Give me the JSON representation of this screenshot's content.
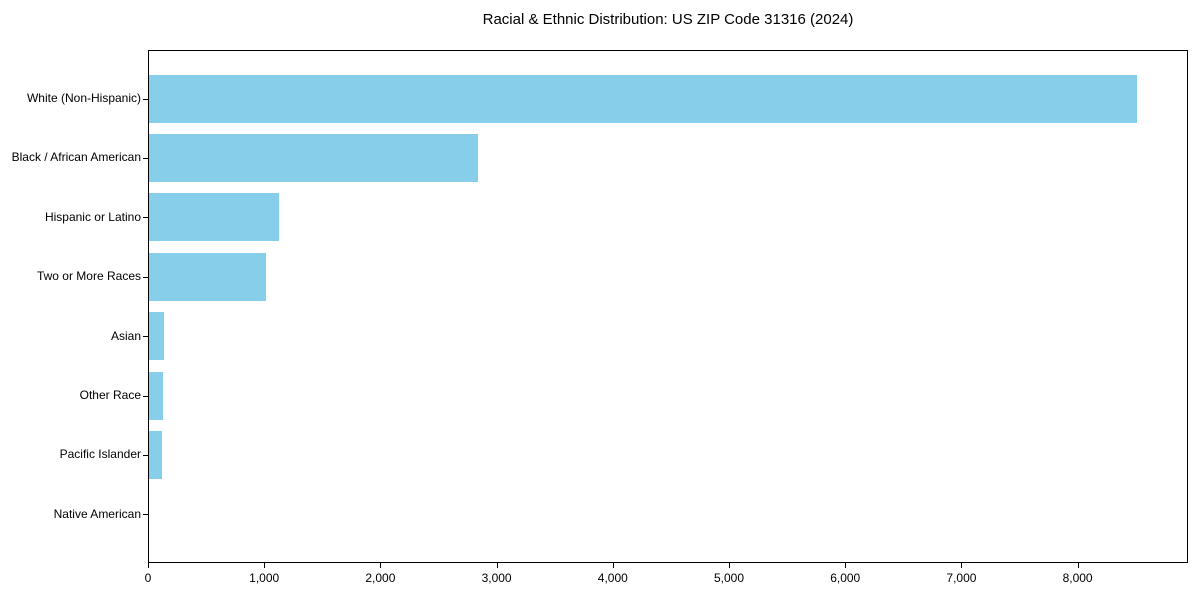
{
  "title": "Racial & Ethnic Distribution: US ZIP Code 31316 (2024)",
  "colors": {
    "bar": "#87CEEB",
    "axis": "#000000",
    "background": "#FFFFFF",
    "text": "#000000"
  },
  "chart_data": {
    "type": "bar",
    "orientation": "horizontal",
    "title": "Racial & Ethnic Distribution: US ZIP Code 31316 (2024)",
    "categories": [
      "White (Non-Hispanic)",
      "Black / African American",
      "Hispanic or Latino",
      "Two or More Races",
      "Asian",
      "Other Race",
      "Pacific Islander",
      "Native American"
    ],
    "values": [
      8500,
      2830,
      1120,
      1005,
      128,
      118,
      112,
      0
    ],
    "xlabel": "",
    "ylabel": "",
    "xlim": [
      0,
      8950
    ],
    "xticks": [
      0,
      1000,
      2000,
      3000,
      4000,
      5000,
      6000,
      7000,
      8000
    ],
    "xtick_labels": [
      "0",
      "1,000",
      "2,000",
      "3,000",
      "4,000",
      "5,000",
      "6,000",
      "7,000",
      "8,000"
    ],
    "grid": false,
    "legend": null,
    "bar_color": "#87CEEB"
  }
}
